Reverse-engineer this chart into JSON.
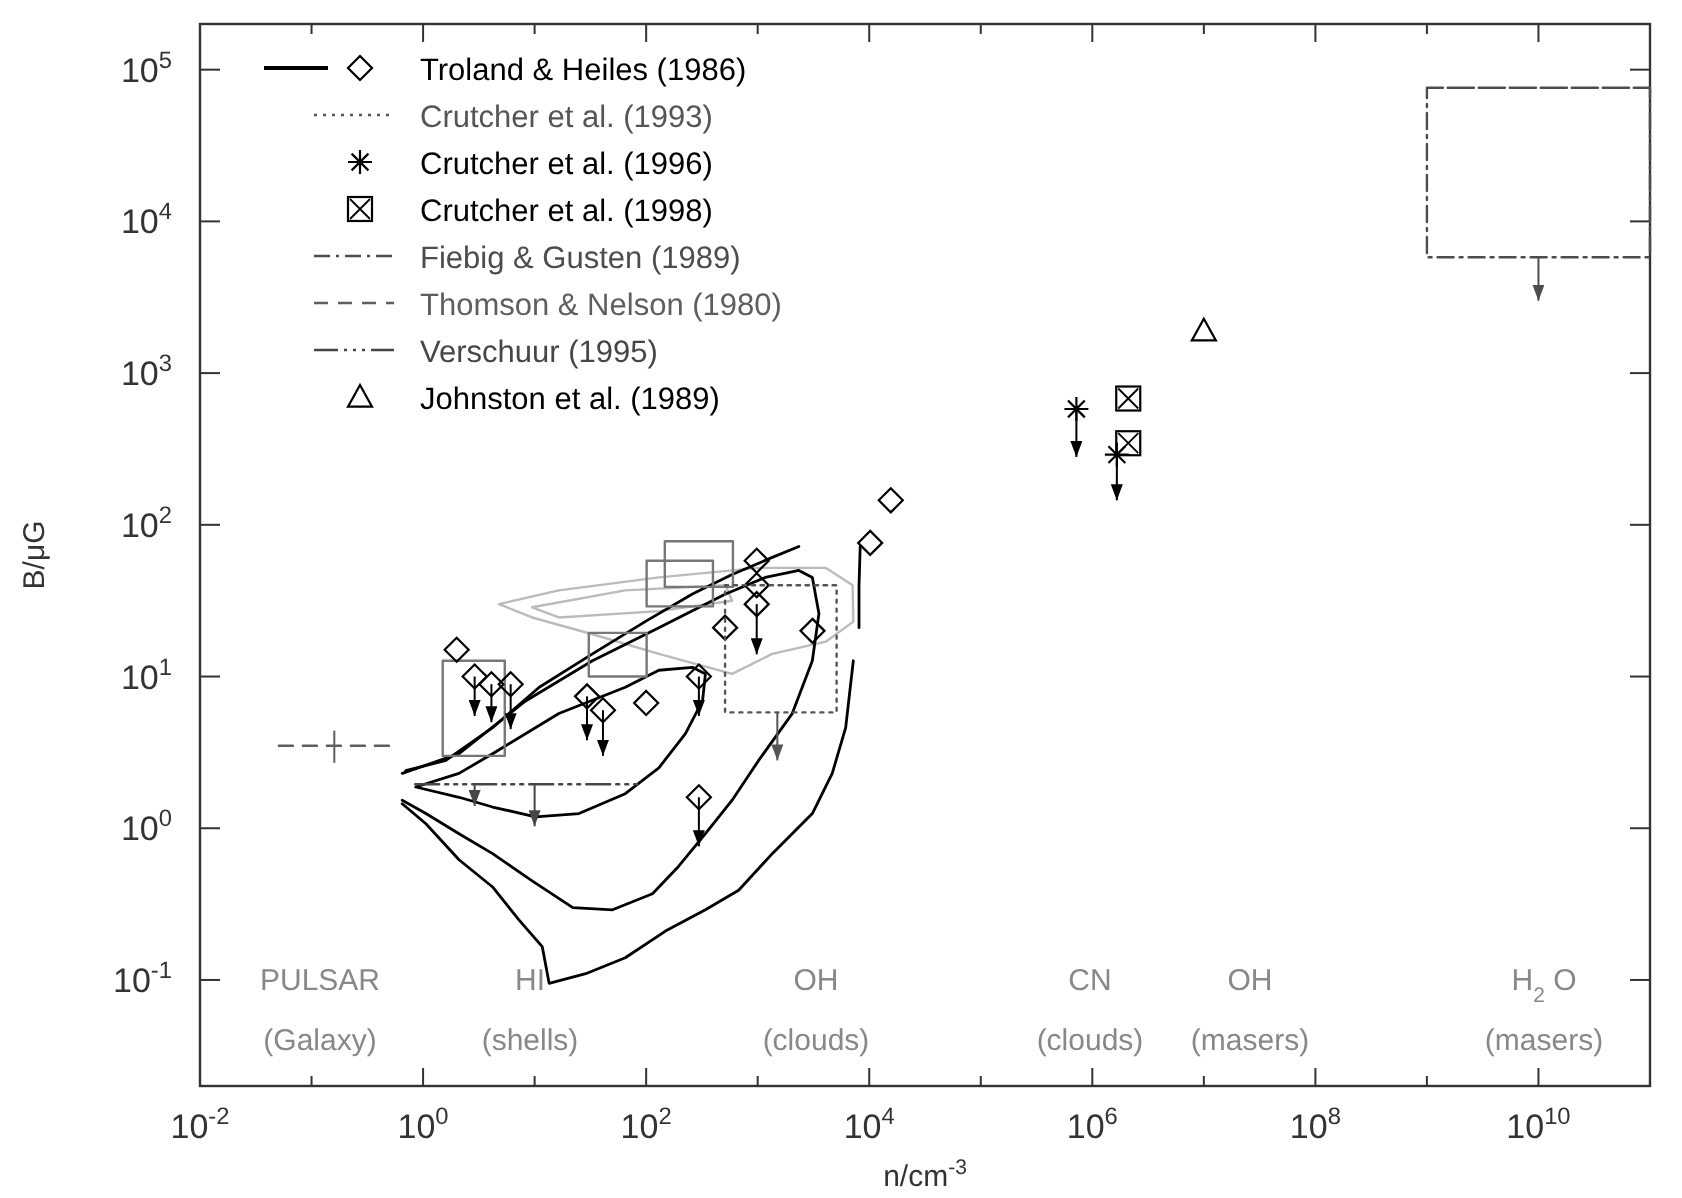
{
  "chart_data": {
    "type": "scatter",
    "xlabel": "n/cm$^{-3}$",
    "ylabel": "B/μG",
    "log": "xy",
    "grid": false,
    "legend": "top left",
    "xlim": [
      0.01,
      100000000000.0
    ],
    "ylim": [
      0.02,
      200000
    ],
    "xticks": [
      {
        "value": 0.01,
        "label": "10$^{-2}$"
      },
      {
        "value": 0.1,
        "label": null
      },
      {
        "value": 1,
        "label": "10$^{0}$"
      },
      {
        "value": 10,
        "label": null
      },
      {
        "value": 100,
        "label": "10$^{2}$"
      },
      {
        "value": 1000,
        "label": null
      },
      {
        "value": 10000,
        "label": "10$^{4}$"
      },
      {
        "value": 100000,
        "label": null
      },
      {
        "value": 1000000,
        "label": "10$^{6}$"
      },
      {
        "value": 10000000,
        "label": null
      },
      {
        "value": 100000000,
        "label": "10$^{8}$"
      },
      {
        "value": 1000000000,
        "label": null
      },
      {
        "value": 10000000000,
        "label": "10$^{10}$"
      },
      {
        "value": 100000000000,
        "label": null
      }
    ],
    "yticks": [
      {
        "value": 0.1,
        "label": "10$^{-1}$"
      },
      {
        "value": 1,
        "label": "10$^{0}$"
      },
      {
        "value": 10,
        "label": "10$^{1}$"
      },
      {
        "value": 100,
        "label": "10$^{2}$"
      },
      {
        "value": 1000,
        "label": "10$^{3}$"
      },
      {
        "value": 10000,
        "label": "10$^{4}$"
      },
      {
        "value": 100000,
        "label": "10$^{5}$"
      }
    ],
    "series": [
      {
        "type": "line",
        "color": "#bbbbbb",
        "line_style": "solid",
        "x": [
          4.8,
          16.5,
          130,
          1020,
          4100,
          7100,
          7200,
          4100,
          1350,
          590,
          130,
          33,
          9.5,
          4.8,
          16.5
        ],
        "values": [
          30,
          37,
          45,
          52,
          52,
          40,
          23,
          17,
          14.1,
          10.4,
          14.1,
          19,
          24.5,
          30,
          37
        ]
      },
      {
        "type": "line",
        "color": "#bbbbbb",
        "line_style": "solid",
        "x": [
          9.5,
          65,
          515,
          590,
          130,
          16.5,
          9.5,
          65
        ],
        "values": [
          28.6,
          37,
          40,
          31.6,
          27,
          24.5,
          28.6,
          37
        ]
      },
      {
        "type": "line",
        "color": "#000000",
        "line_style": "solid",
        "x": [
          0.65,
          1.06,
          2.1,
          4.2,
          7.2,
          11.7,
          13.5,
          28.7,
          65,
          149,
          340,
          675,
          1350,
          3090,
          4660,
          6150,
          7200
        ],
        "values": [
          1.45,
          1.07,
          0.62,
          0.41,
          0.25,
          0.166,
          0.095,
          0.11,
          0.14,
          0.21,
          0.29,
          0.39,
          0.68,
          1.25,
          2.3,
          4.6,
          12.7
        ]
      },
      {
        "type": "line",
        "color": "#000000",
        "line_style": "solid",
        "x": [
          0.65,
          2.1,
          8.3,
          33,
          130,
          515,
          1170,
          2340,
          3090,
          3540,
          3090,
          2040,
          1020,
          590,
          340,
          195,
          114,
          50,
          22,
          9.5,
          4.2,
          2.1,
          1.06,
          0.65
        ],
        "values": [
          2.3,
          3.1,
          6.9,
          12.7,
          21,
          35,
          45,
          50,
          45,
          26,
          12.7,
          5.7,
          2.8,
          1.53,
          0.92,
          0.56,
          0.37,
          0.29,
          0.3,
          0.45,
          0.68,
          0.92,
          1.25,
          1.53
        ]
      },
      {
        "type": "line",
        "color": "#000000",
        "line_style": "solid",
        "x": [
          0.86,
          2.1,
          4.2,
          10.2,
          25,
          65,
          130,
          225,
          320,
          340,
          260,
          130,
          65,
          16.5,
          4.2,
          2.1,
          0.86,
          2.1
        ],
        "values": [
          1.87,
          1.6,
          1.38,
          1.19,
          1.25,
          1.69,
          2.5,
          4.2,
          6.9,
          10.4,
          11.5,
          11,
          8.5,
          5.7,
          3.1,
          2.3,
          1.87,
          1.6
        ]
      },
      {
        "type": "line",
        "color": "#000000",
        "line_style": "solid",
        "x": [
          0.7,
          1.6,
          4.2,
          11,
          33,
          98,
          260,
          590,
          1350,
          2340
        ],
        "values": [
          2.4,
          2.8,
          4.6,
          8.5,
          14.1,
          23,
          35,
          47,
          61,
          72
        ]
      },
      {
        "type": "line",
        "color": "#000000",
        "line_style": "solid",
        "x": [
          8300,
          8100,
          8100
        ],
        "values": [
          72,
          40,
          21
        ]
      },
      {
        "type": "line",
        "color": "#777777",
        "line_style": "solid",
        "x": [
          1.5,
          5.4,
          5.4,
          1.5,
          1.5,
          5.4
        ],
        "values": [
          12.7,
          12.7,
          3,
          3,
          12.7,
          12.7
        ]
      },
      {
        "type": "line",
        "color": "#777777",
        "line_style": "solid",
        "x": [
          30.6,
          101,
          101,
          30.6,
          30.6,
          101
        ],
        "values": [
          19.4,
          19.4,
          10,
          10,
          19.4,
          19.4
        ]
      },
      {
        "type": "line",
        "color": "#777777",
        "line_style": "solid",
        "x": [
          101,
          397,
          397,
          101,
          101,
          397
        ],
        "values": [
          58,
          58,
          29,
          29,
          58,
          58
        ]
      },
      {
        "type": "line",
        "color": "#777777",
        "line_style": "solid",
        "x": [
          147,
          600,
          600,
          147,
          147,
          600
        ],
        "values": [
          78,
          78,
          39,
          39,
          78,
          78
        ]
      },
      {
        "name": "Troland & Heiles (1986)",
        "color": "#000000",
        "marker": "diamond",
        "line_style": "solid",
        "x": [
          2,
          2.9,
          4.1,
          6.1,
          29.5,
          41,
          100,
          297,
          297,
          510,
          980,
          980,
          980,
          3100,
          10200,
          15600
        ],
        "values": [
          15,
          10,
          8.9,
          8.9,
          7.4,
          6,
          6.7,
          10,
          1.6,
          21,
          58,
          40,
          30,
          20,
          76,
          145
        ],
        "errors": [
          null,
          [
            5.5,
            10
          ],
          [
            5,
            8.9
          ],
          [
            4.5,
            8.9
          ],
          [
            3.8,
            7.4
          ],
          [
            3,
            6
          ],
          null,
          [
            5.5,
            10
          ],
          [
            0.76,
            1.6
          ],
          null,
          null,
          null,
          [
            14,
            30
          ],
          null,
          null,
          null
        ]
      },
      {
        "type": "line",
        "name": "Crutcher et al. (1993)",
        "color": "#555555",
        "line_style": "dotted",
        "x": [
          510,
          5100,
          5100,
          1500,
          510,
          510,
          5100
        ],
        "values": [
          40,
          40,
          5.8,
          5.8,
          5.8,
          40,
          40
        ],
        "errors": [
          null,
          null,
          null,
          [
            2.8,
            5.8
          ],
          null,
          null,
          null
        ]
      },
      {
        "name": "Crutcher et al. (1996)",
        "color": "#000000",
        "marker": "cross",
        "x": [
          720000,
          1660000
        ],
        "values": [
          580,
          290
        ],
        "errors": [
          [
            280,
            580
          ],
          [
            145,
            290
          ]
        ]
      },
      {
        "name": "Crutcher et al. (1998)",
        "color": "#000000",
        "marker": "square",
        "x": [
          2100000,
          2100000
        ],
        "values": [
          680,
          345
        ]
      },
      {
        "type": "line",
        "name": "Fiebig & Gusten (1989)",
        "color": "#4d4d4d",
        "line_style": "dashdot",
        "x": [
          1000000000,
          100000000000,
          100000000000,
          10000000000,
          1000000000,
          1000000000,
          100000000000
        ],
        "values": [
          76000,
          76000,
          5800,
          5800,
          5800,
          76000,
          76000
        ],
        "errors": [
          null,
          null,
          null,
          [
            3000,
            5800
          ],
          null,
          null,
          null
        ]
      },
      {
        "type": "line",
        "name": "Thomson & Nelson (1980)",
        "color": "#5e5e5e",
        "line_style": "dashed",
        "x": [
          0.051,
          0.16,
          0.56
        ],
        "values": [
          3.5,
          3.5,
          3.5
        ],
        "errors": [
          null,
          [
            2.7,
            4.4
          ],
          null
        ]
      },
      {
        "type": "line",
        "name": "Verschuur (1995)",
        "color": "#464646",
        "line_style": "dashdotdot",
        "x": [
          0.85,
          2.9,
          10,
          86
        ],
        "values": [
          1.95,
          1.95,
          1.95,
          1.95
        ],
        "errors": [
          null,
          [
            1.4,
            1.95
          ],
          [
            1.03,
            1.95
          ],
          null
        ]
      },
      {
        "name": "Johnston et al. (1989)",
        "color": "#000000",
        "marker": "triangle",
        "x": [
          10000000
        ],
        "values": [
          1900
        ]
      }
    ],
    "annotations": [
      "PULSAR",
      "(Galaxy)",
      "HI",
      "(shells)",
      "OH",
      "(clouds)",
      "CN",
      "(clouds)",
      "OH",
      "(masers)",
      "H$_{2}$O",
      "(masers)"
    ]
  }
}
